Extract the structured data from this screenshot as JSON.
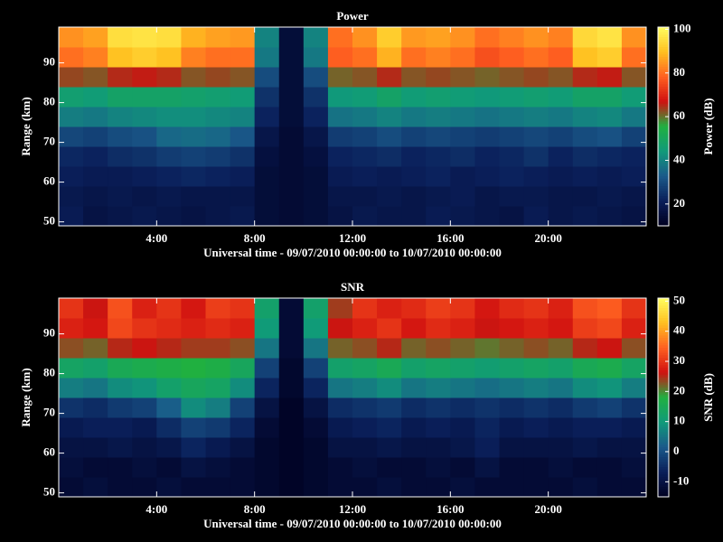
{
  "chart_data": [
    {
      "type": "heatmap",
      "title": "Power",
      "xlabel": "Universal time - 09/07/2010 00:00:00 to 10/07/2010 00:00:00",
      "ylabel": "Range (km)",
      "colorbar_label": "Power (dB)",
      "x": [
        0.5,
        1.5,
        2.5,
        3.5,
        4.5,
        5.5,
        6.5,
        7.5,
        8.5,
        9.5,
        10.5,
        11.5,
        12.5,
        13.5,
        14.5,
        15.5,
        16.5,
        17.5,
        18.5,
        19.5,
        20.5,
        21.5,
        22.5,
        23.5
      ],
      "y": [
        51.5,
        56.5,
        61.5,
        66.5,
        71.5,
        76.5,
        81.5,
        86.5,
        91.5,
        96.5
      ],
      "z": [
        [
          20,
          17,
          18,
          19,
          18,
          17,
          18,
          19,
          15,
          14,
          15,
          17,
          19,
          18,
          18,
          20,
          19,
          18,
          17,
          20,
          18,
          19,
          18,
          17
        ],
        [
          19,
          18,
          19,
          18,
          19,
          18,
          18,
          18,
          15,
          14,
          15,
          18,
          18,
          19,
          18,
          19,
          20,
          18,
          19,
          19,
          18,
          18,
          19,
          18
        ],
        [
          21,
          20,
          20,
          21,
          22,
          23,
          22,
          21,
          15,
          14,
          15,
          20,
          21,
          20,
          21,
          22,
          20,
          21,
          22,
          21,
          20,
          21,
          20,
          21
        ],
        [
          23,
          22,
          24,
          25,
          27,
          28,
          27,
          25,
          16,
          14,
          16,
          22,
          23,
          24,
          22,
          23,
          24,
          22,
          23,
          25,
          22,
          24,
          23,
          22
        ],
        [
          29,
          28,
          30,
          31,
          35,
          36,
          35,
          32,
          18,
          14,
          18,
          27,
          28,
          30,
          28,
          29,
          28,
          27,
          28,
          29,
          28,
          30,
          31,
          28
        ],
        [
          39,
          38,
          40,
          41,
          42,
          42,
          41,
          40,
          22,
          15,
          22,
          37,
          38,
          40,
          38,
          39,
          38,
          37,
          38,
          39,
          38,
          40,
          41,
          38
        ],
        [
          46,
          45,
          48,
          48,
          48,
          47,
          46,
          45,
          25,
          15,
          25,
          44,
          45,
          48,
          45,
          46,
          45,
          44,
          45,
          46,
          45,
          48,
          48,
          45
        ],
        [
          63,
          62,
          65,
          66,
          65,
          62,
          63,
          62,
          30,
          15,
          30,
          61,
          62,
          65,
          62,
          63,
          62,
          61,
          62,
          63,
          62,
          65,
          66,
          62
        ],
        [
          80,
          82,
          90,
          92,
          90,
          82,
          80,
          80,
          38,
          15,
          38,
          78,
          80,
          88,
          80,
          82,
          80,
          76,
          78,
          80,
          78,
          90,
          92,
          80
        ],
        [
          84,
          86,
          95,
          96,
          95,
          88,
          86,
          85,
          40,
          15,
          40,
          80,
          84,
          92,
          85,
          86,
          84,
          80,
          82,
          84,
          82,
          94,
          96,
          84
        ]
      ],
      "xlim": [
        0,
        24
      ],
      "ylim": [
        49,
        99
      ],
      "zlim": [
        10,
        101
      ],
      "xticks": [
        {
          "value": 4,
          "label": "4:00"
        },
        {
          "value": 8,
          "label": "8:00"
        },
        {
          "value": 12,
          "label": "12:00"
        },
        {
          "value": 16,
          "label": "16:00"
        },
        {
          "value": 20,
          "label": "20:00"
        }
      ],
      "yticks": [
        50,
        60,
        70,
        80,
        90
      ],
      "zticks": [
        20,
        40,
        60,
        80,
        100
      ],
      "colormap": [
        "#000020",
        "#0a1f5a",
        "#1a5a8a",
        "#109a7a",
        "#20b040",
        "#d01010",
        "#ff6020",
        "#ffc020",
        "#ffff60"
      ]
    },
    {
      "type": "heatmap",
      "title": "SNR",
      "xlabel": "Universal time - 09/07/2010 00:00:00 to 10/07/2010 00:00:00",
      "ylabel": "Range (km)",
      "colorbar_label": "SNR (dB)",
      "x": [
        0.5,
        1.5,
        2.5,
        3.5,
        4.5,
        5.5,
        6.5,
        7.5,
        8.5,
        9.5,
        10.5,
        11.5,
        12.5,
        13.5,
        14.5,
        15.5,
        16.5,
        17.5,
        18.5,
        19.5,
        20.5,
        21.5,
        22.5,
        23.5
      ],
      "y": [
        51.5,
        56.5,
        61.5,
        66.5,
        71.5,
        76.5,
        81.5,
        86.5,
        91.5,
        96.5
      ],
      "z": [
        [
          -12,
          -11,
          -12,
          -12,
          -11,
          -12,
          -12,
          -12,
          -13,
          -14,
          -13,
          -12,
          -12,
          -11,
          -12,
          -12,
          -11,
          -12,
          -12,
          -12,
          -12,
          -11,
          -12,
          -12
        ],
        [
          -11,
          -12,
          -12,
          -11,
          -12,
          -10,
          -11,
          -12,
          -13,
          -14,
          -13,
          -12,
          -11,
          -12,
          -12,
          -11,
          -12,
          -10,
          -12,
          -12,
          -11,
          -12,
          -12,
          -11
        ],
        [
          -10,
          -10,
          -9,
          -10,
          -9,
          -6,
          -8,
          -10,
          -13,
          -14,
          -13,
          -10,
          -10,
          -9,
          -10,
          -10,
          -9,
          -7,
          -10,
          -10,
          -10,
          -9,
          -10,
          -10
        ],
        [
          -8,
          -7,
          -7,
          -8,
          -5,
          -2,
          -3,
          -6,
          -12,
          -14,
          -12,
          -8,
          -7,
          -6,
          -8,
          -7,
          -8,
          -6,
          -8,
          -7,
          -8,
          -7,
          -7,
          -8
        ],
        [
          -4,
          -5,
          -3,
          -2,
          2,
          8,
          6,
          -2,
          -10,
          -14,
          -10,
          -5,
          -4,
          -3,
          -5,
          -4,
          -5,
          -4,
          -5,
          -4,
          -5,
          -3,
          -2,
          -4
        ],
        [
          6,
          5,
          8,
          9,
          12,
          14,
          13,
          8,
          -6,
          -13,
          -6,
          5,
          6,
          8,
          5,
          6,
          5,
          4,
          5,
          6,
          5,
          8,
          9,
          6
        ],
        [
          13,
          12,
          15,
          16,
          17,
          18,
          17,
          14,
          -2,
          -13,
          -2,
          12,
          13,
          15,
          12,
          13,
          12,
          11,
          12,
          13,
          12,
          15,
          16,
          13
        ],
        [
          23,
          22,
          25,
          26,
          25,
          24,
          24,
          23,
          5,
          -12,
          5,
          22,
          23,
          25,
          22,
          23,
          22,
          21,
          22,
          23,
          22,
          25,
          26,
          23
        ],
        [
          28,
          27,
          32,
          30,
          29,
          28,
          29,
          28,
          10,
          -12,
          10,
          26,
          28,
          30,
          27,
          29,
          28,
          26,
          27,
          28,
          27,
          31,
          32,
          28
        ],
        [
          30,
          26,
          33,
          28,
          30,
          27,
          31,
          30,
          12,
          -12,
          12,
          24,
          30,
          28,
          29,
          31,
          30,
          27,
          29,
          30,
          28,
          33,
          34,
          30
        ]
      ],
      "xlim": [
        0,
        24
      ],
      "ylim": [
        49,
        99
      ],
      "zlim": [
        -15,
        51
      ],
      "xticks": [
        {
          "value": 4,
          "label": "4:00"
        },
        {
          "value": 8,
          "label": "8:00"
        },
        {
          "value": 12,
          "label": "12:00"
        },
        {
          "value": 16,
          "label": "16:00"
        },
        {
          "value": 20,
          "label": "20:00"
        }
      ],
      "yticks": [
        50,
        60,
        70,
        80,
        90
      ],
      "zticks": [
        -10,
        0,
        10,
        20,
        30,
        40,
        50
      ],
      "colormap": [
        "#000020",
        "#0a1f5a",
        "#1a5a8a",
        "#109a7a",
        "#20b040",
        "#d01010",
        "#ff6020",
        "#ffc020",
        "#ffff60"
      ]
    }
  ]
}
